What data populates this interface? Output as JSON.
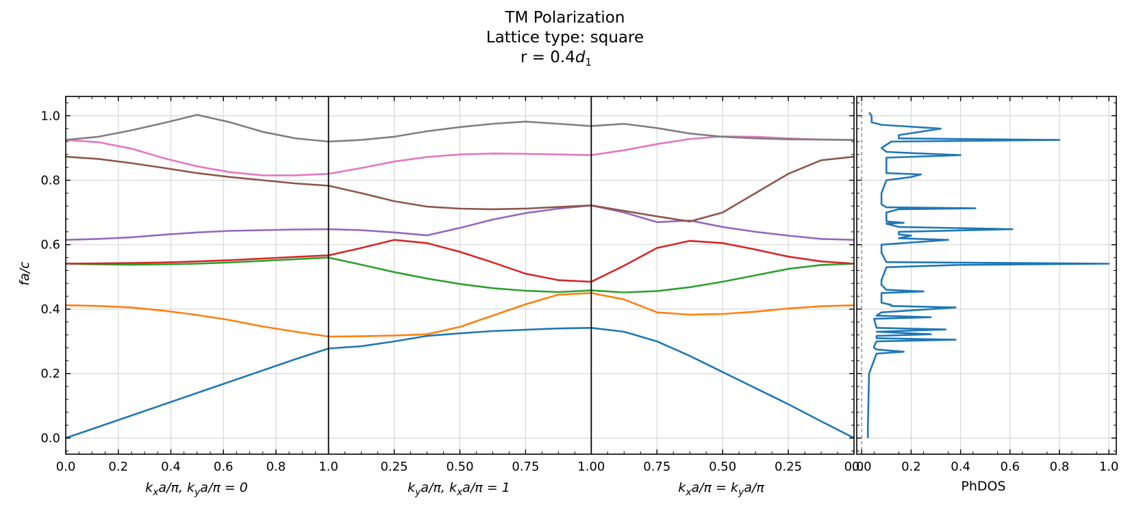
{
  "chart_data": {
    "type": "line",
    "title_lines": [
      "TM Polarization",
      "Lattice type: square",
      "r = 0.4"
    ],
    "title_symbol": "d",
    "title_symbol_subscript": "1",
    "ylabel": "fa/c",
    "ylim": [
      -0.05,
      1.06
    ],
    "yticks": [
      "0.0",
      "0.2",
      "0.4",
      "0.6",
      "0.8",
      "1.0"
    ],
    "grid": true,
    "segments": [
      {
        "name": "Γ-X",
        "xlabel": "kxa/π, kya/π = 0",
        "ticks": [
          "0.0",
          "0.2",
          "0.4",
          "0.6",
          "0.8",
          "1.0"
        ]
      },
      {
        "name": "X-M",
        "xlabel": "kya/π, kxa/π = 1",
        "ticks": [
          "0.25",
          "0.50",
          "0.75",
          "1.00"
        ]
      },
      {
        "name": "M-Γ",
        "xlabel": "kxa/π = kya/π",
        "ticks": [
          "0.75",
          "0.50",
          "0.25",
          "0.0"
        ]
      }
    ],
    "band_x": [
      0,
      0.125,
      0.25,
      0.375,
      0.5,
      0.625,
      0.75,
      0.875,
      1.0,
      1.125,
      1.25,
      1.375,
      1.5,
      1.625,
      1.75,
      1.875,
      2.0,
      2.125,
      2.25,
      2.375,
      2.5,
      2.625,
      2.75,
      2.875,
      3.0
    ],
    "series": [
      {
        "name": "band 1",
        "color": "#1f77b4",
        "values": [
          0.0,
          0.035,
          0.07,
          0.105,
          0.14,
          0.175,
          0.21,
          0.245,
          0.278,
          0.285,
          0.3,
          0.317,
          0.325,
          0.332,
          0.336,
          0.34,
          0.342,
          0.33,
          0.3,
          0.255,
          0.205,
          0.155,
          0.105,
          0.052,
          0.0
        ]
      },
      {
        "name": "band 2",
        "color": "#ff7f0e",
        "values": [
          0.412,
          0.41,
          0.405,
          0.395,
          0.382,
          0.366,
          0.346,
          0.33,
          0.315,
          0.316,
          0.318,
          0.322,
          0.345,
          0.38,
          0.415,
          0.445,
          0.45,
          0.43,
          0.39,
          0.383,
          0.385,
          0.392,
          0.402,
          0.409,
          0.412
        ]
      },
      {
        "name": "band 3",
        "color": "#2ca02c",
        "values": [
          0.541,
          0.539,
          0.538,
          0.539,
          0.541,
          0.545,
          0.55,
          0.555,
          0.56,
          0.538,
          0.515,
          0.495,
          0.478,
          0.465,
          0.457,
          0.453,
          0.458,
          0.452,
          0.456,
          0.468,
          0.485,
          0.505,
          0.525,
          0.537,
          0.541
        ]
      },
      {
        "name": "band 4",
        "color": "#d62728",
        "values": [
          0.541,
          0.542,
          0.543,
          0.545,
          0.548,
          0.552,
          0.557,
          0.562,
          0.567,
          0.59,
          0.615,
          0.605,
          0.578,
          0.545,
          0.51,
          0.49,
          0.485,
          0.535,
          0.59,
          0.612,
          0.605,
          0.585,
          0.563,
          0.548,
          0.541
        ]
      },
      {
        "name": "band 5",
        "color": "#9467bd",
        "values": [
          0.615,
          0.618,
          0.623,
          0.631,
          0.638,
          0.643,
          0.645,
          0.647,
          0.648,
          0.645,
          0.638,
          0.629,
          0.652,
          0.678,
          0.698,
          0.712,
          0.722,
          0.7,
          0.67,
          0.675,
          0.655,
          0.64,
          0.628,
          0.618,
          0.615
        ]
      },
      {
        "name": "band 6",
        "color": "#8c564b",
        "values": [
          0.873,
          0.866,
          0.853,
          0.838,
          0.822,
          0.81,
          0.8,
          0.79,
          0.783,
          0.76,
          0.735,
          0.718,
          0.712,
          0.71,
          0.712,
          0.717,
          0.722,
          0.705,
          0.688,
          0.672,
          0.7,
          0.76,
          0.82,
          0.862,
          0.873
        ]
      },
      {
        "name": "band 7",
        "color": "#e377c2",
        "values": [
          0.925,
          0.918,
          0.898,
          0.868,
          0.843,
          0.825,
          0.815,
          0.815,
          0.82,
          0.838,
          0.858,
          0.872,
          0.88,
          0.883,
          0.882,
          0.88,
          0.878,
          0.893,
          0.912,
          0.928,
          0.936,
          0.935,
          0.93,
          0.926,
          0.925
        ]
      },
      {
        "name": "band 8",
        "color": "#7f7f7f",
        "values": [
          0.925,
          0.935,
          0.955,
          0.978,
          1.003,
          0.98,
          0.95,
          0.93,
          0.92,
          0.925,
          0.935,
          0.952,
          0.965,
          0.975,
          0.982,
          0.975,
          0.968,
          0.975,
          0.962,
          0.945,
          0.935,
          0.93,
          0.927,
          0.926,
          0.925
        ]
      }
    ],
    "dos": {
      "xlabel": "PhDOS",
      "xlim": [
        -0.02,
        1.03
      ],
      "xticks": [
        "0.0",
        "0.2",
        "0.4",
        "0.6",
        "0.8",
        "1.0"
      ],
      "color": "#1f77b4",
      "freq": [
        0.0,
        0.03,
        0.2,
        0.262,
        0.268,
        0.275,
        0.28,
        0.284,
        0.3,
        0.305,
        0.31,
        0.317,
        0.322,
        0.33,
        0.337,
        0.342,
        0.37,
        0.375,
        0.38,
        0.39,
        0.405,
        0.41,
        0.413,
        0.42,
        0.45,
        0.455,
        0.46,
        0.475,
        0.49,
        0.53,
        0.537,
        0.541,
        0.546,
        0.575,
        0.6,
        0.615,
        0.62,
        0.628,
        0.632,
        0.64,
        0.648,
        0.655,
        0.665,
        0.668,
        0.672,
        0.68,
        0.7,
        0.71,
        0.713,
        0.716,
        0.725,
        0.76,
        0.8,
        0.81,
        0.818,
        0.822,
        0.83,
        0.87,
        0.878,
        0.884,
        0.888,
        0.9,
        0.92,
        0.925,
        0.93,
        0.94,
        0.96,
        0.972,
        0.98,
        1.0,
        1.01
      ],
      "values": [
        0.025,
        0.025,
        0.03,
        0.06,
        0.17,
        0.06,
        0.05,
        0.05,
        0.06,
        0.38,
        0.06,
        0.06,
        0.28,
        0.06,
        0.34,
        0.06,
        0.05,
        0.28,
        0.06,
        0.08,
        0.38,
        0.12,
        0.12,
        0.08,
        0.08,
        0.25,
        0.1,
        0.08,
        0.08,
        0.1,
        0.38,
        1.0,
        0.1,
        0.08,
        0.08,
        0.35,
        0.15,
        0.2,
        0.15,
        0.15,
        0.61,
        0.15,
        0.1,
        0.17,
        0.1,
        0.1,
        0.1,
        0.15,
        0.46,
        0.1,
        0.08,
        0.08,
        0.1,
        0.2,
        0.24,
        0.1,
        0.1,
        0.1,
        0.4,
        0.21,
        0.1,
        0.08,
        0.12,
        0.8,
        0.15,
        0.15,
        0.32,
        0.08,
        0.04,
        0.04,
        0.03
      ]
    }
  }
}
